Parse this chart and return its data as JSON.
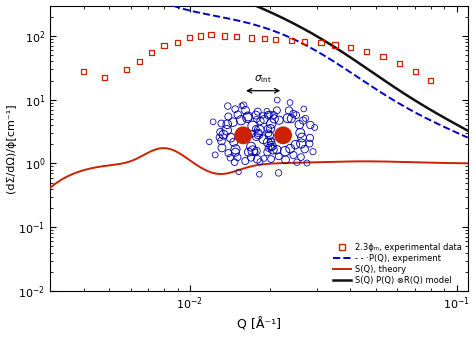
{
  "xlabel": "Q [Å⁻¹]",
  "ylabel": "(dΣ/dΩ)/ϕ[cm⁻¹]",
  "xlim": [
    0.003,
    0.11
  ],
  "ylim": [
    0.01,
    300.0
  ],
  "legend_entries": [
    "2.3ϕₘ, experimental data",
    "- - ·P(Q), experiment",
    "S(Q), theory",
    "S(Q) P(Q) ⊗R(Q) model"
  ],
  "exp_color": "#cc2200",
  "PQ_color": "#0000cc",
  "SQ_color": "#cc2200",
  "model_color": "#111111",
  "background_color": "#ffffff"
}
